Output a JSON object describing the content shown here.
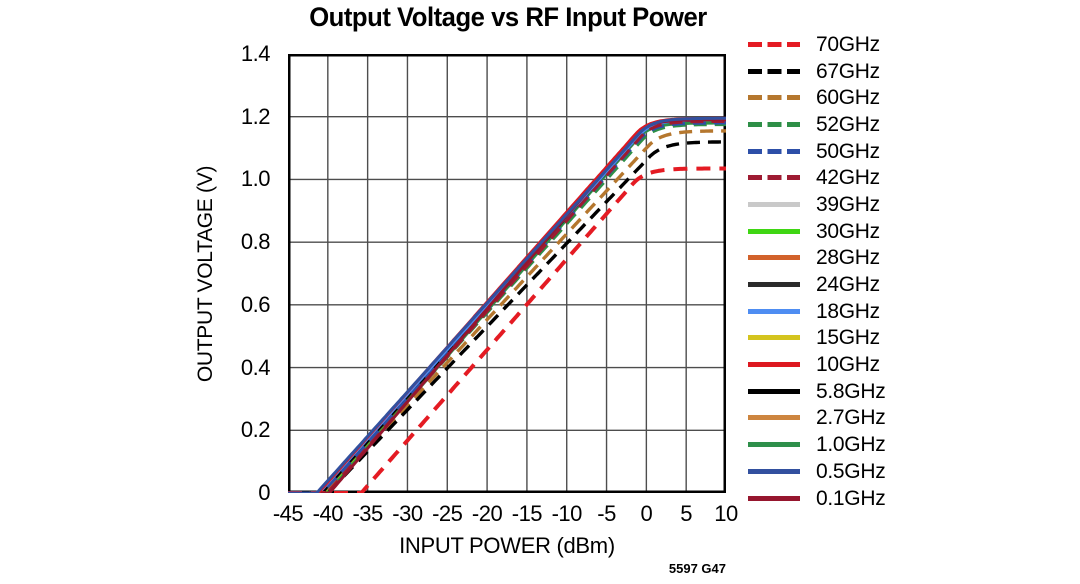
{
  "page": {
    "background": "#ffffff"
  },
  "colors": {
    "frame": "#000000",
    "grid": "#4d4d4d",
    "text": "#000000"
  },
  "watermark": "5597 G47",
  "chart_data": {
    "type": "line",
    "title": "Output Voltage vs RF Input Power",
    "xlabel": "INPUT POWER (dBm)",
    "ylabel": "OUTPUT VOLTAGE (V)",
    "xlim": [
      -45,
      10
    ],
    "ylim": [
      0,
      1.4
    ],
    "xticks": [
      -45,
      -40,
      -35,
      -30,
      -25,
      -20,
      -15,
      -10,
      -5,
      0,
      5,
      10
    ],
    "yticks": [
      0,
      0.2,
      0.4,
      0.6,
      0.8,
      1.0,
      1.2,
      1.4
    ],
    "grid": true,
    "legend_position": "right",
    "description": "Each curve is ~0 V below its takeoff power, rises linearly at ~29 mV/dB, and saturates at its saturation voltage.",
    "series": [
      {
        "name": "70GHz",
        "color": "#e41b23",
        "dashed": true,
        "width": 4,
        "takeoff_dbm": -35.8,
        "sat_dbm": 0.0,
        "saturation_v": 1.035
      },
      {
        "name": "67GHz",
        "color": "#000000",
        "dashed": true,
        "width": 3.4,
        "takeoff_dbm": -40.0,
        "sat_dbm": 2.2,
        "saturation_v": 1.12
      },
      {
        "name": "60GHz",
        "color": "#b5772e",
        "dashed": true,
        "width": 3.4,
        "takeoff_dbm": -40.2,
        "sat_dbm": 2.0,
        "saturation_v": 1.155
      },
      {
        "name": "52GHz",
        "color": "#2e8f47",
        "dashed": true,
        "width": 3,
        "takeoff_dbm": -40.3,
        "sat_dbm": 1.2,
        "saturation_v": 1.175
      },
      {
        "name": "50GHz",
        "color": "#2d4fa8",
        "dashed": true,
        "width": 3,
        "takeoff_dbm": -40.6,
        "sat_dbm": 1.0,
        "saturation_v": 1.18
      },
      {
        "name": "42GHz",
        "color": "#9e1b32",
        "dashed": true,
        "width": 3,
        "takeoff_dbm": -40.1,
        "sat_dbm": 1.0,
        "saturation_v": 1.185
      },
      {
        "name": "39GHz",
        "color": "#c9c9c9",
        "dashed": false,
        "width": 3,
        "takeoff_dbm": -40.9,
        "sat_dbm": 0.9,
        "saturation_v": 1.185
      },
      {
        "name": "30GHz",
        "color": "#3fd613",
        "dashed": false,
        "width": 3,
        "takeoff_dbm": -40.1,
        "sat_dbm": 0.7,
        "saturation_v": 1.185
      },
      {
        "name": "28GHz",
        "color": "#d2622b",
        "dashed": false,
        "width": 3,
        "takeoff_dbm": -40.5,
        "sat_dbm": 0.8,
        "saturation_v": 1.185
      },
      {
        "name": "24GHz",
        "color": "#2b2b2b",
        "dashed": false,
        "width": 3,
        "takeoff_dbm": -40.7,
        "sat_dbm": 0.8,
        "saturation_v": 1.19
      },
      {
        "name": "18GHz",
        "color": "#4e8df2",
        "dashed": false,
        "width": 3,
        "takeoff_dbm": -41.1,
        "sat_dbm": 0.8,
        "saturation_v": 1.19
      },
      {
        "name": "15GHz",
        "color": "#d4c41e",
        "dashed": false,
        "width": 3,
        "takeoff_dbm": -40.3,
        "sat_dbm": 0.6,
        "saturation_v": 1.185
      },
      {
        "name": "10GHz",
        "color": "#dd1820",
        "dashed": false,
        "width": 3,
        "takeoff_dbm": -41.2,
        "sat_dbm": 0.4,
        "saturation_v": 1.195
      },
      {
        "name": "5.8GHz",
        "color": "#000000",
        "dashed": false,
        "width": 3,
        "takeoff_dbm": -40.8,
        "sat_dbm": 0.7,
        "saturation_v": 1.19
      },
      {
        "name": "2.7GHz",
        "color": "#cd853f",
        "dashed": false,
        "width": 3,
        "takeoff_dbm": -40.6,
        "sat_dbm": 0.7,
        "saturation_v": 1.185
      },
      {
        "name": "1.0GHz",
        "color": "#2e8f4a",
        "dashed": false,
        "width": 3,
        "takeoff_dbm": -40.0,
        "sat_dbm": 0.6,
        "saturation_v": 1.18
      },
      {
        "name": "0.5GHz",
        "color": "#32509f",
        "dashed": false,
        "width": 3,
        "takeoff_dbm": -41.4,
        "sat_dbm": 0.8,
        "saturation_v": 1.195
      },
      {
        "name": "0.1GHz",
        "color": "#96162e",
        "dashed": false,
        "width": 3,
        "takeoff_dbm": -39.8,
        "sat_dbm": 0.3,
        "saturation_v": 1.19
      }
    ],
    "draw_order": [
      "39GHz",
      "28GHz",
      "2.7GHz",
      "15GHz",
      "30GHz",
      "1.0GHz",
      "24GHz",
      "5.8GHz",
      "18GHz",
      "52GHz",
      "50GHz",
      "60GHz",
      "67GHz",
      "70GHz",
      "42GHz",
      "0.1GHz",
      "10GHz",
      "0.5GHz"
    ]
  }
}
